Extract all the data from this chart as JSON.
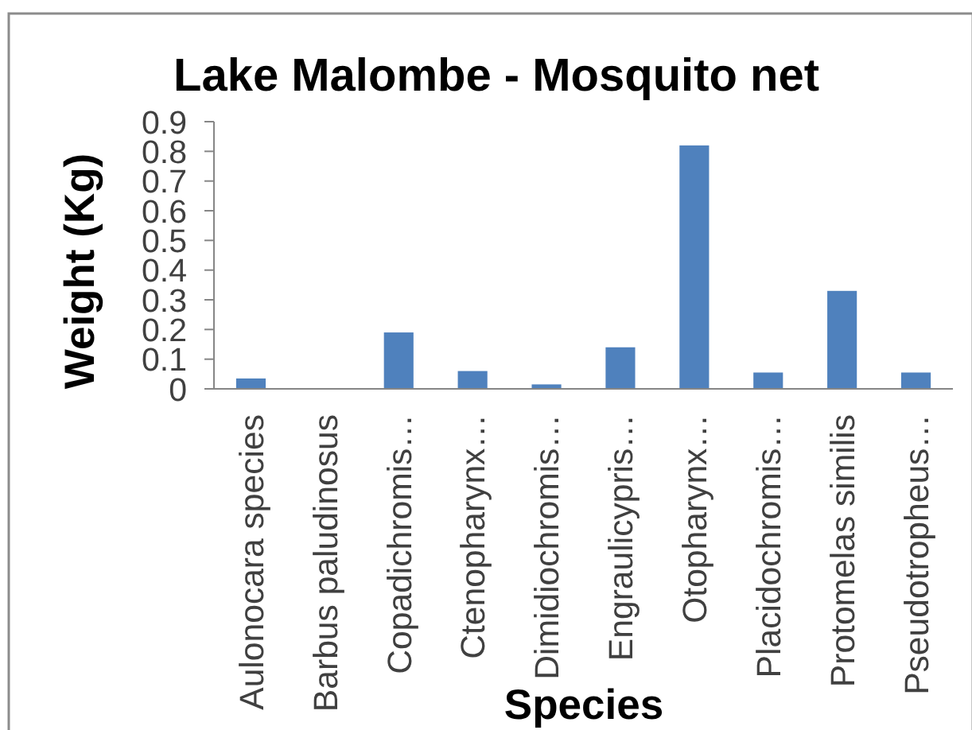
{
  "chart_data": {
    "type": "bar",
    "title": "Lake Malombe - Mosquito net",
    "xlabel": "Species",
    "ylabel": "Weight (Kg)",
    "categories": [
      "Aulonocara species",
      "Barbus paludinosus",
      "Copadichromis…",
      "Ctenopharynx…",
      "Dimidiochromis…",
      "Engraulicypris…",
      "Otopharynx…",
      "Placidochromis…",
      "Protomelas similis",
      "Pseudotropheus…"
    ],
    "values": [
      0.035,
      0,
      0.19,
      0.06,
      0.015,
      0.14,
      0.82,
      0.055,
      0.33,
      0.055
    ],
    "color": "#4f81bd",
    "ylim": [
      0,
      0.9
    ],
    "yticks": [
      0,
      0.1,
      0.2,
      0.3,
      0.4,
      0.5,
      0.6,
      0.7,
      0.8,
      0.9
    ]
  }
}
